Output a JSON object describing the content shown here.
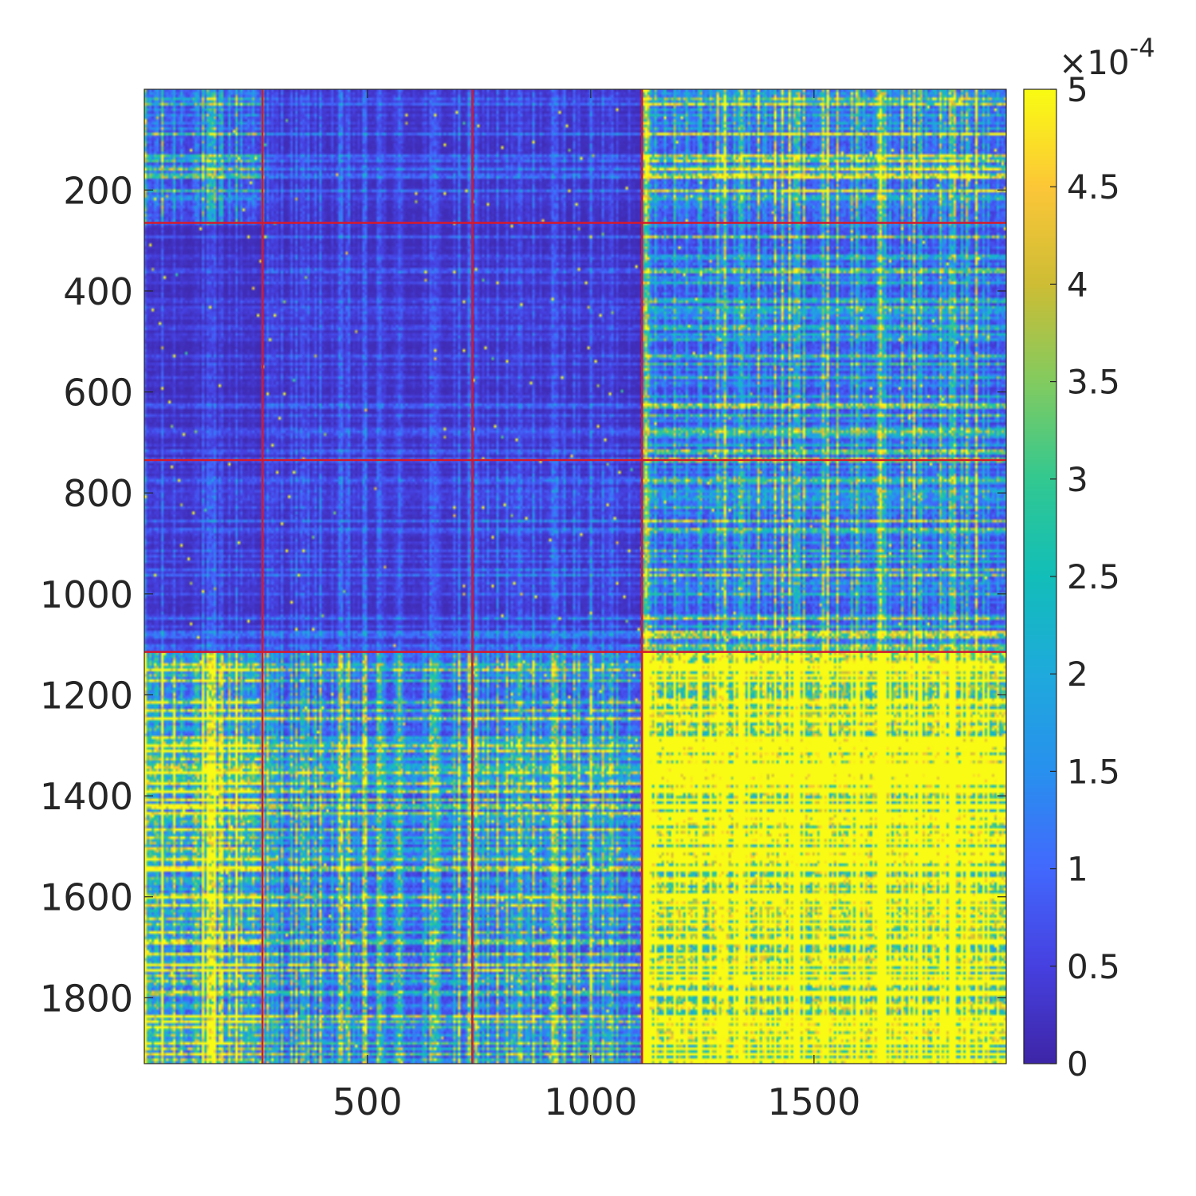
{
  "chart_data": {
    "type": "heatmap",
    "title": "",
    "xlabel": "",
    "ylabel": "",
    "matrix_size": 1930,
    "xlim": [
      1,
      1930
    ],
    "ylim": [
      1,
      1930
    ],
    "y_direction": "reverse",
    "x_ticks": [
      500,
      1000,
      1500
    ],
    "x_tick_labels": [
      "500",
      "1000",
      "1500"
    ],
    "y_ticks": [
      200,
      400,
      600,
      800,
      1000,
      1200,
      1400,
      1600,
      1800
    ],
    "y_tick_labels": [
      "200",
      "400",
      "600",
      "800",
      "1000",
      "1200",
      "1400",
      "1600",
      "1800"
    ],
    "colormap": "parula",
    "color_limits": [
      0,
      0.0005
    ],
    "colorbar": {
      "ticks": [
        0,
        0.5,
        1,
        1.5,
        2,
        2.5,
        3,
        3.5,
        4,
        4.5,
        5
      ],
      "tick_labels": [
        "0",
        "0.5",
        "1",
        "1.5",
        "2",
        "2.5",
        "3",
        "3.5",
        "4",
        "4.5",
        "5"
      ],
      "multiplier_prefix": "×10",
      "multiplier_exponent": "-4",
      "placement": "right"
    },
    "block_boundaries": [
      265,
      735,
      1115
    ],
    "boundary_color": "#d7192b",
    "block_mean_levels": [
      [
        0.35,
        0.12,
        0.12,
        0.55
      ],
      [
        0.08,
        0.1,
        0.1,
        0.4
      ],
      [
        0.12,
        0.12,
        0.15,
        0.45
      ],
      [
        0.7,
        0.4,
        0.45,
        1.8
      ]
    ],
    "grid": false
  }
}
